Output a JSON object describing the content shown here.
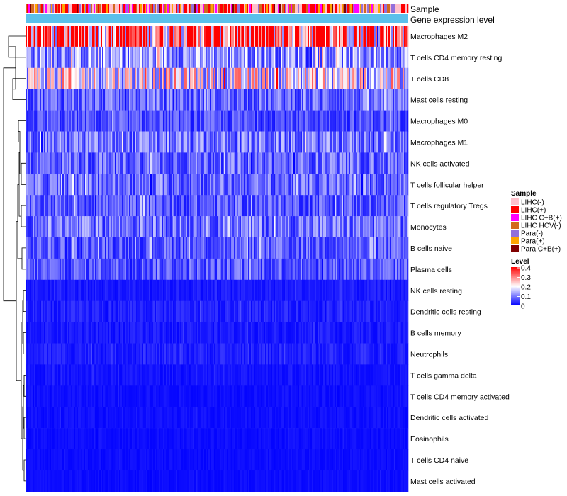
{
  "chart_data": {
    "type": "heatmap",
    "title": "",
    "annotations": [
      {
        "name": "Sample"
      },
      {
        "name": "Gene expression level",
        "color": "#5BC0EB"
      }
    ],
    "rows": [
      {
        "label": "Macrophages M2",
        "level": 0.34
      },
      {
        "label": "T cells CD4 memory resting",
        "level": 0.12
      },
      {
        "label": "T cells CD8",
        "level": 0.19
      },
      {
        "label": "Mast cells resting",
        "level": 0.08
      },
      {
        "label": "Macrophages M0",
        "level": 0.06
      },
      {
        "label": "Macrophages M1",
        "level": 0.09
      },
      {
        "label": "NK cells activated",
        "level": 0.08
      },
      {
        "label": "T cells follicular helper",
        "level": 0.08
      },
      {
        "label": "T cells regulatory  Tregs",
        "level": 0.07
      },
      {
        "label": "Monocytes",
        "level": 0.09
      },
      {
        "label": "B cells naive",
        "level": 0.07
      },
      {
        "label": "Plasma cells",
        "level": 0.07
      },
      {
        "label": "NK cells resting",
        "level": 0.02
      },
      {
        "label": "Dendritic cells resting",
        "level": 0.025
      },
      {
        "label": "B cells memory",
        "level": 0.02
      },
      {
        "label": "Neutrophils",
        "level": 0.025
      },
      {
        "label": "T cells gamma delta",
        "level": 0.015
      },
      {
        "label": "T cells CD4 memory activated",
        "level": 0.012
      },
      {
        "label": "Dendritic cells activated",
        "level": 0.012
      },
      {
        "label": "Eosinophils",
        "level": 0.01
      },
      {
        "label": "T cells CD4 naive",
        "level": 0.01
      },
      {
        "label": "Mast cells activated",
        "level": 0.01
      }
    ],
    "sample_legend": {
      "title": "Sample",
      "items": [
        {
          "label": "LIHC(-)",
          "color": "#FFC0CB"
        },
        {
          "label": "LIHC(+)",
          "color": "#FF0000"
        },
        {
          "label": "LIHC C+B(+)",
          "color": "#FF00FF"
        },
        {
          "label": "LIHC HCV(-)",
          "color": "#D2691E"
        },
        {
          "label": "Para(-)",
          "color": "#9370DB"
        },
        {
          "label": "Para(+)",
          "color": "#FFA500"
        },
        {
          "label": "Para C+B(+)",
          "color": "#800000"
        }
      ]
    },
    "level_legend": {
      "title": "Level",
      "ticks": [
        "0.4",
        "0.3",
        "0.2",
        "0.1",
        "0"
      ],
      "range": [
        0,
        0.4
      ],
      "colors": [
        "#0000FF",
        "#FFFFFF",
        "#FF0000"
      ]
    }
  }
}
